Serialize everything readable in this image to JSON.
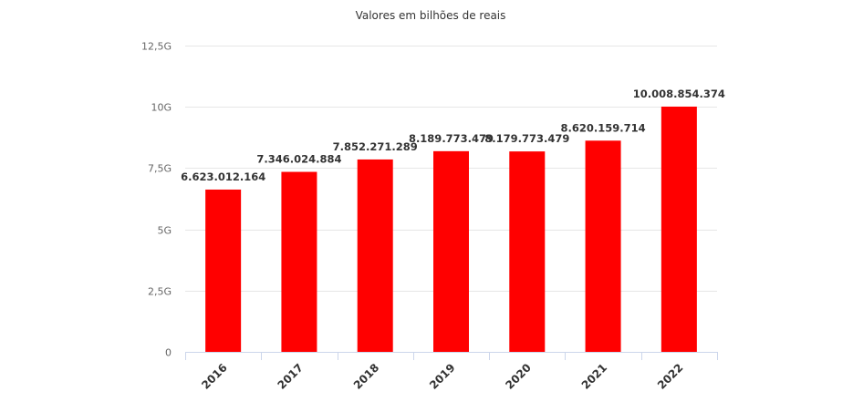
{
  "chart_data": {
    "type": "bar",
    "title": "Valores em bilhões de reais",
    "categories": [
      "2016",
      "2017",
      "2018",
      "2019",
      "2020",
      "2021",
      "2022"
    ],
    "values": [
      6623012164,
      7346024884,
      7852271289,
      8189773479,
      8179773479,
      8620159714,
      10008854374
    ],
    "data_labels": [
      "6.623.012.164",
      "7.346.024.884",
      "7.852.271.289",
      "8.189.773.479",
      "8.179.773.479",
      "8.620.159.714",
      "10.008.854.374"
    ],
    "y_ticks": [
      0,
      2500000000,
      5000000000,
      7500000000,
      10000000000,
      12500000000
    ],
    "y_tick_labels": [
      "0",
      "2,5G",
      "5G",
      "7,5G",
      "10G",
      "12,5G"
    ],
    "ylim": [
      0,
      12500000000
    ],
    "xlabel": "",
    "ylabel": "",
    "grid": true,
    "legend": "none",
    "bar_color": "#ff0000"
  }
}
